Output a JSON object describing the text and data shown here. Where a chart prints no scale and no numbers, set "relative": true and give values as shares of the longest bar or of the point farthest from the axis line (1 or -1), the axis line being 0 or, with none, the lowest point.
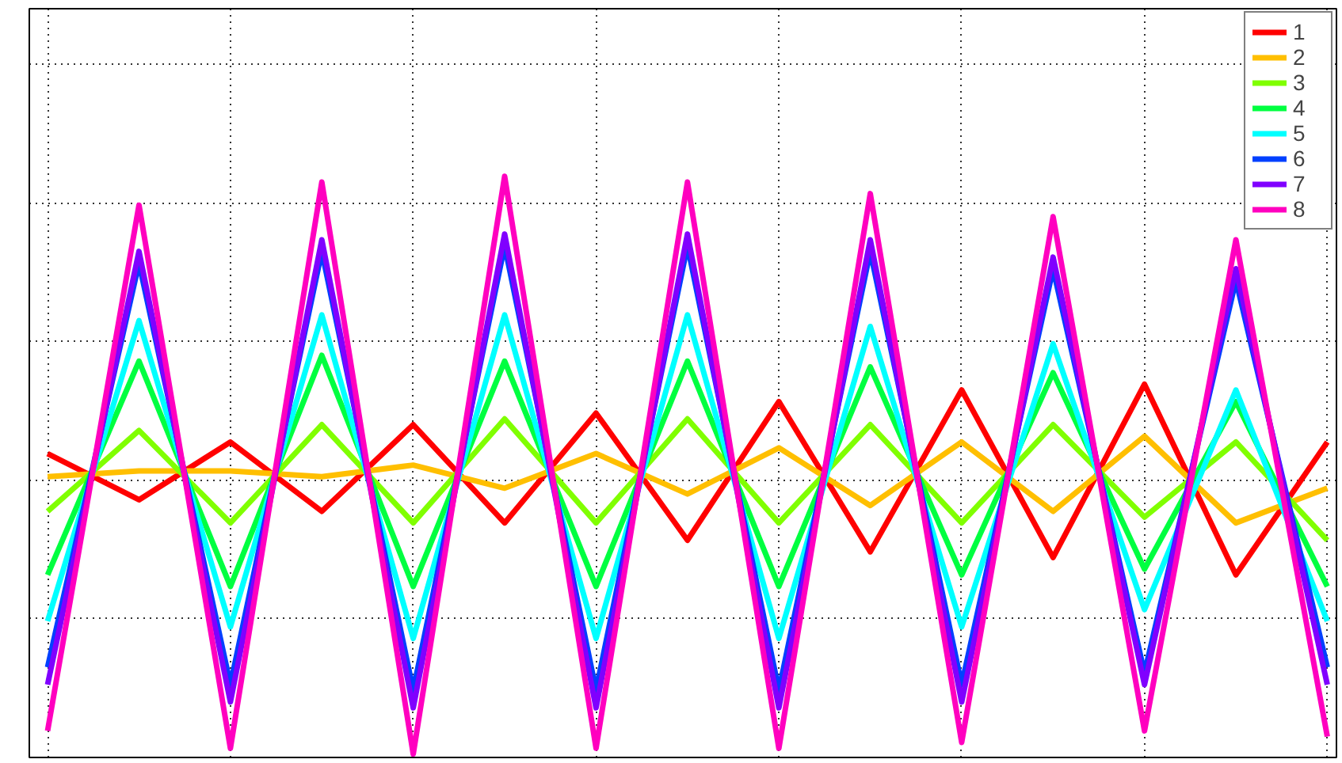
{
  "chart_data": {
    "type": "line",
    "relative": true,
    "grid": true,
    "legend": "top right",
    "line_style": "solid",
    "categories": [
      null,
      null,
      null,
      null,
      null,
      null,
      null,
      null,
      null,
      null,
      null,
      null,
      null,
      null,
      null
    ],
    "series": [
      {
        "name": "1",
        "color": "#ff0000",
        "values": [
          0.52,
          0.44,
          0.54,
          0.42,
          0.57,
          0.4,
          0.59,
          0.37,
          0.61,
          0.35,
          0.63,
          0.34,
          0.64,
          0.31,
          0.54
        ]
      },
      {
        "name": "2",
        "color": "#ffbf00",
        "values": [
          0.48,
          0.49,
          0.49,
          0.48,
          0.5,
          0.46,
          0.52,
          0.45,
          0.53,
          0.43,
          0.54,
          0.42,
          0.55,
          0.4,
          0.46
        ]
      },
      {
        "name": "3",
        "color": "#80ff00",
        "values": [
          0.42,
          0.56,
          0.4,
          0.57,
          0.4,
          0.58,
          0.4,
          0.58,
          0.4,
          0.57,
          0.4,
          0.57,
          0.41,
          0.54,
          0.37
        ]
      },
      {
        "name": "4",
        "color": "#00ff40",
        "values": [
          0.31,
          0.68,
          0.29,
          0.69,
          0.29,
          0.68,
          0.29,
          0.68,
          0.29,
          0.67,
          0.31,
          0.66,
          0.32,
          0.61,
          0.29
        ]
      },
      {
        "name": "5",
        "color": "#00ffff",
        "values": [
          0.23,
          0.75,
          0.22,
          0.76,
          0.2,
          0.76,
          0.2,
          0.76,
          0.2,
          0.74,
          0.22,
          0.71,
          0.25,
          0.63,
          0.23
        ]
      },
      {
        "name": "6",
        "color": "#0040ff",
        "values": [
          0.15,
          0.85,
          0.12,
          0.87,
          0.11,
          0.88,
          0.11,
          0.88,
          0.11,
          0.87,
          0.12,
          0.84,
          0.14,
          0.82,
          0.15
        ]
      },
      {
        "name": "7",
        "color": "#8000ff",
        "values": [
          0.12,
          0.87,
          0.09,
          0.89,
          0.08,
          0.9,
          0.08,
          0.9,
          0.08,
          0.89,
          0.09,
          0.86,
          0.12,
          0.84,
          0.12
        ]
      },
      {
        "name": "8",
        "color": "#ff00bf",
        "values": [
          0.04,
          0.95,
          0.01,
          0.99,
          0.0,
          1.0,
          0.01,
          0.99,
          0.01,
          0.97,
          0.02,
          0.93,
          0.04,
          0.89,
          0.03
        ]
      }
    ]
  }
}
